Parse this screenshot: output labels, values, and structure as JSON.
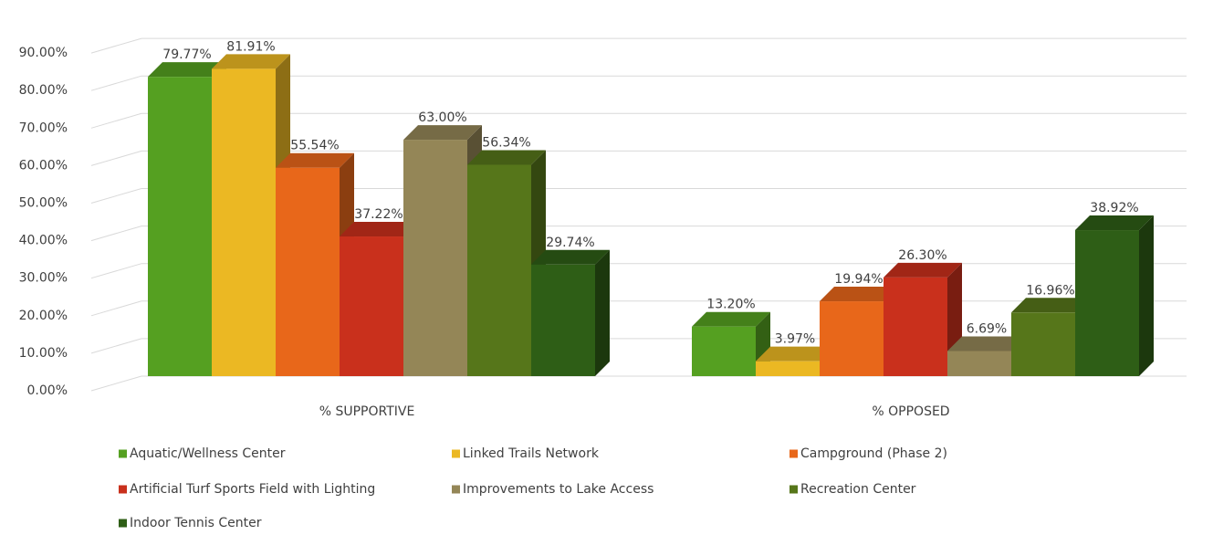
{
  "chart_data": {
    "type": "bar3d",
    "categories": [
      "% SUPPORTIVE",
      "% OPPOSED"
    ],
    "series": [
      {
        "name": "Aquatic/Wellness Center",
        "color": "#55a021",
        "values": [
          79.77,
          13.2
        ],
        "value_labels": [
          "79.77%",
          "13.20%"
        ]
      },
      {
        "name": "Linked Trails Network",
        "color": "#ebb823",
        "values": [
          81.91,
          3.97
        ],
        "value_labels": [
          "81.91%",
          "3.97%"
        ]
      },
      {
        "name": "Campground (Phase 2)",
        "color": "#e8671a",
        "values": [
          55.54,
          19.94
        ],
        "value_labels": [
          "55.54%",
          "19.94%"
        ]
      },
      {
        "name": "Artificial Turf Sports Field with Lighting",
        "color": "#c9301c",
        "values": [
          37.22,
          26.3
        ],
        "value_labels": [
          "37.22%",
          "26.30%"
        ]
      },
      {
        "name": "Improvements to Lake Access",
        "color": "#948657",
        "values": [
          63.0,
          6.69
        ],
        "value_labels": [
          "63.00%",
          "6.69%"
        ]
      },
      {
        "name": "Recreation Center",
        "color": "#56761a",
        "values": [
          56.34,
          16.96
        ],
        "value_labels": [
          "56.34%",
          "16.96%"
        ]
      },
      {
        "name": "Indoor Tennis Center",
        "color": "#2e5e16",
        "values": [
          29.74,
          38.92
        ],
        "value_labels": [
          "29.74%",
          "38.92%"
        ]
      }
    ],
    "ylim": [
      0,
      100
    ],
    "yticks": [
      {
        "value": 0,
        "label": "0.00%"
      },
      {
        "value": 10,
        "label": "10.00%"
      },
      {
        "value": 20,
        "label": "20.00%"
      },
      {
        "value": 30,
        "label": "30.00%"
      },
      {
        "value": 40,
        "label": "40.00%"
      },
      {
        "value": 50,
        "label": "50.00%"
      },
      {
        "value": 60,
        "label": "60.00%"
      },
      {
        "value": 70,
        "label": "70.00%"
      },
      {
        "value": 80,
        "label": "80.00%"
      },
      {
        "value": 90,
        "label": "90.00%"
      }
    ],
    "grid": true,
    "legend": "bottom"
  }
}
